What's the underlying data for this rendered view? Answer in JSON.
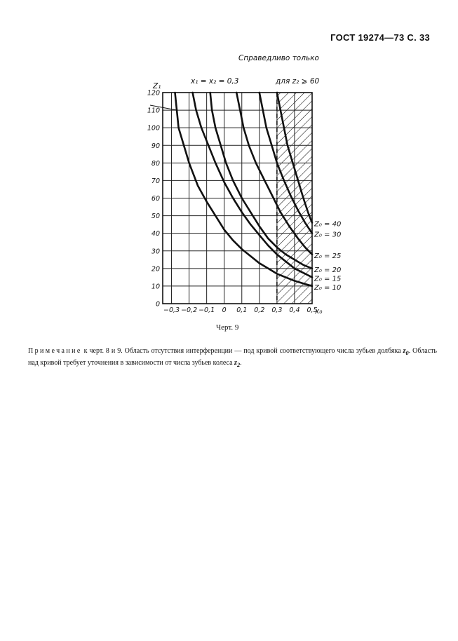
{
  "header": {
    "title": "ГОСТ 19274—73 С. 33"
  },
  "note_top": "Справедливо только",
  "caption": "Черт. 9",
  "footnote": {
    "lead": "Примечание",
    "text1": " к черт. 8 и 9. Область отсутствия интерференции — под кривой соответствующего числа зубьев долбяка ",
    "var1": "z",
    "sub1": "0",
    "text2": ". Область над кривой требует уточнения в зависимости от числа зубьев колеса ",
    "var2": "z",
    "sub2": "2",
    "text3": "."
  },
  "chart_data": {
    "type": "line",
    "y_axis_label": "Z₁",
    "x_axis_label": "x₀",
    "curve_label_top_left": "x₁ = x₂ = 0,3",
    "hatch_label": "для z₂ ⩾ 60",
    "x_ticks": [
      "−0,3",
      "−0,2",
      "−0,1",
      "0",
      "0,1",
      "0,2",
      "0,3",
      "0,4",
      "0,5"
    ],
    "y_ticks": [
      "0",
      "10",
      "20",
      "30",
      "40",
      "50",
      "60",
      "70",
      "80",
      "90",
      "100",
      "110",
      "120"
    ],
    "xlim": [
      -0.35,
      0.5
    ],
    "ylim": [
      0,
      120
    ],
    "grid": true,
    "hatched_region_x": [
      0.3,
      0.5
    ],
    "series": [
      {
        "name": "Z₀ = 10",
        "points": [
          [
            -0.28,
            120
          ],
          [
            -0.26,
            100
          ],
          [
            -0.23,
            90
          ],
          [
            -0.2,
            80
          ],
          [
            -0.15,
            67
          ],
          [
            -0.1,
            58
          ],
          [
            -0.05,
            50
          ],
          [
            0,
            42
          ],
          [
            0.05,
            36
          ],
          [
            0.1,
            31
          ],
          [
            0.15,
            27
          ],
          [
            0.2,
            23
          ],
          [
            0.25,
            20
          ],
          [
            0.3,
            17
          ],
          [
            0.35,
            15
          ],
          [
            0.4,
            13
          ],
          [
            0.45,
            11.5
          ],
          [
            0.5,
            10
          ]
        ]
      },
      {
        "name": "Z₀ = 15",
        "points": [
          [
            -0.18,
            120
          ],
          [
            -0.16,
            110
          ],
          [
            -0.13,
            100
          ],
          [
            -0.09,
            90
          ],
          [
            -0.05,
            80
          ],
          [
            0,
            69
          ],
          [
            0.05,
            60
          ],
          [
            0.1,
            52
          ],
          [
            0.15,
            45
          ],
          [
            0.2,
            39
          ],
          [
            0.25,
            33
          ],
          [
            0.3,
            28
          ],
          [
            0.35,
            24
          ],
          [
            0.4,
            20
          ],
          [
            0.45,
            17.5
          ],
          [
            0.5,
            15
          ]
        ]
      },
      {
        "name": "Z₀ = 20",
        "points": [
          [
            -0.08,
            120
          ],
          [
            -0.07,
            110
          ],
          [
            -0.05,
            100
          ],
          [
            -0.02,
            90
          ],
          [
            0.01,
            80
          ],
          [
            0.05,
            70
          ],
          [
            0.1,
            60
          ],
          [
            0.15,
            52
          ],
          [
            0.2,
            44
          ],
          [
            0.25,
            37
          ],
          [
            0.3,
            32
          ],
          [
            0.35,
            28
          ],
          [
            0.4,
            25
          ],
          [
            0.45,
            22
          ],
          [
            0.5,
            20
          ]
        ]
      },
      {
        "name": "Z₀ = 25",
        "points": [
          [
            0.07,
            120
          ],
          [
            0.09,
            110
          ],
          [
            0.11,
            100
          ],
          [
            0.14,
            90
          ],
          [
            0.18,
            80
          ],
          [
            0.23,
            70
          ],
          [
            0.28,
            60
          ],
          [
            0.32,
            52
          ],
          [
            0.37,
            44
          ],
          [
            0.42,
            37
          ],
          [
            0.46,
            32
          ],
          [
            0.5,
            28
          ]
        ]
      },
      {
        "name": "Z₀ = 30",
        "points": [
          [
            0.2,
            120
          ],
          [
            0.22,
            110
          ],
          [
            0.24,
            100
          ],
          [
            0.27,
            90
          ],
          [
            0.3,
            80
          ],
          [
            0.34,
            70
          ],
          [
            0.38,
            61
          ],
          [
            0.42,
            53
          ],
          [
            0.46,
            46
          ],
          [
            0.5,
            40
          ]
        ]
      },
      {
        "name": "Z₀ = 40",
        "points": [
          [
            0.3,
            120
          ],
          [
            0.32,
            110
          ],
          [
            0.34,
            100
          ],
          [
            0.36,
            90
          ],
          [
            0.39,
            80
          ],
          [
            0.42,
            70
          ],
          [
            0.45,
            60
          ],
          [
            0.48,
            51
          ],
          [
            0.5,
            46
          ]
        ]
      }
    ]
  }
}
